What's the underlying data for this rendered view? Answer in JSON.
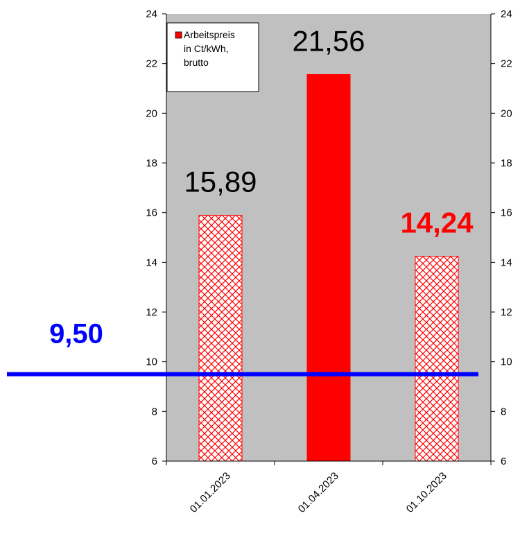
{
  "chart_data": {
    "type": "bar",
    "categories": [
      "01.01.2023",
      "01.04.2023",
      "01.10.2023"
    ],
    "series": [
      {
        "name": "Arbeitspreis in Ct/kWh, brutto",
        "values": [
          15.89,
          21.56,
          14.24
        ]
      }
    ],
    "data_labels": [
      "15,89",
      "21,56",
      "14,24"
    ],
    "bar_styles": [
      "hatched",
      "solid",
      "hatched"
    ],
    "label_styles": [
      "normal",
      "normal",
      "bold-red"
    ],
    "ylim": [
      6,
      24
    ],
    "yticks": [
      6,
      8,
      10,
      12,
      14,
      16,
      18,
      20,
      22,
      24
    ],
    "secondary_y_axis": true,
    "reference_line": {
      "value": 9.5,
      "label": "9,50",
      "color": "#0000ff"
    },
    "legend": {
      "entries": [
        "Arbeitspreis",
        "in Ct/kWh,",
        "brutto"
      ],
      "position": "top-left"
    },
    "colors": {
      "plot_bg": "#c0c0c0",
      "bar": "#ff0000",
      "highlight_label": "#ff0000",
      "reference": "#0000ff"
    },
    "grid": false
  }
}
